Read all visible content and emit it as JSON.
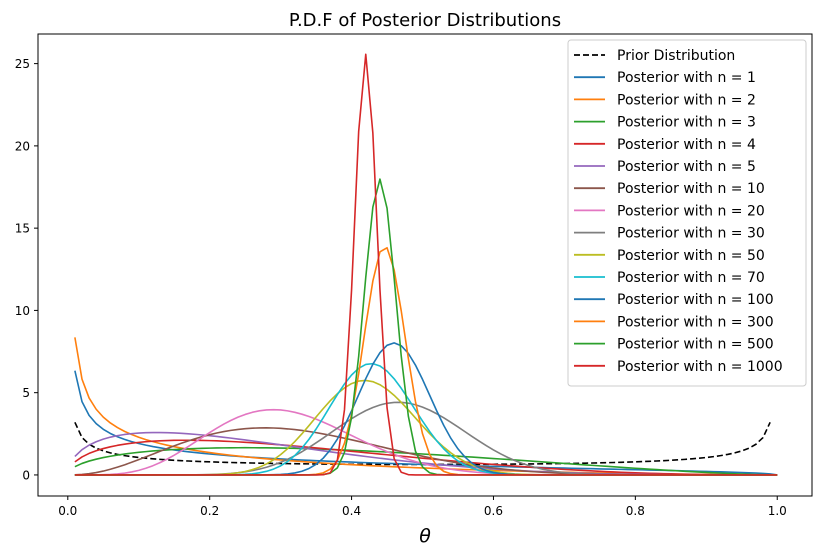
{
  "chart_data": {
    "type": "line",
    "title": "P.D.F of Posterior Distributions",
    "xlabel": "θ",
    "ylabel": "",
    "xlim": [
      -0.042,
      1.049
    ],
    "ylim": [
      -1.28,
      26.8
    ],
    "xticks": [
      0.0,
      0.2,
      0.4,
      0.6,
      0.8,
      1.0
    ],
    "xtick_labels": [
      "0.0",
      "0.2",
      "0.4",
      "0.6",
      "0.8",
      "1.0"
    ],
    "yticks": [
      0,
      5,
      10,
      15,
      20,
      25
    ],
    "ytick_labels": [
      "0",
      "5",
      "10",
      "15",
      "20",
      "25"
    ],
    "grid": false,
    "legend_position": "top-right",
    "series": [
      {
        "name": "Prior Distribution",
        "color": "#000000",
        "dash": true,
        "distribution": "Beta",
        "alpha": 0.5,
        "beta": 0.5,
        "x_range": [
          0.01,
          0.99
        ],
        "x_step": 0.01
      },
      {
        "name": "Posterior with n = 1",
        "color": "#1f77b4",
        "distribution": "Beta",
        "alpha": 0.5,
        "beta": 1.5,
        "x_range": [
          0.01,
          1.0
        ],
        "x_step": 0.01
      },
      {
        "name": "Posterior with n = 2",
        "color": "#ff7f0e",
        "distribution": "Beta",
        "alpha": 0.5,
        "beta": 2.5,
        "x_range": [
          0.01,
          1.0
        ],
        "x_step": 0.01
      },
      {
        "name": "Posterior with n = 3",
        "color": "#2ca02c",
        "distribution": "Beta",
        "alpha": 1.5,
        "beta": 2.5,
        "x_range": [
          0.01,
          1.0
        ],
        "x_step": 0.01
      },
      {
        "name": "Posterior with n = 4",
        "color": "#d62728",
        "distribution": "Beta",
        "alpha": 1.5,
        "beta": 3.5,
        "x_range": [
          0.01,
          1.0
        ],
        "x_step": 0.01
      },
      {
        "name": "Posterior with n = 5",
        "color": "#9467bd",
        "distribution": "Beta",
        "alpha": 1.5,
        "beta": 4.5,
        "x_range": [
          0.01,
          1.0
        ],
        "x_step": 0.01
      },
      {
        "name": "Posterior with n = 10",
        "color": "#8c564b",
        "distribution": "Beta",
        "alpha": 3.5,
        "beta": 7.5,
        "x_range": [
          0.01,
          1.0
        ],
        "x_step": 0.01
      },
      {
        "name": "Posterior with n = 20",
        "color": "#e377c2",
        "distribution": "Beta",
        "alpha": 6.5,
        "beta": 14.5,
        "x_range": [
          0.01,
          1.0
        ],
        "x_step": 0.01
      },
      {
        "name": "Posterior with n = 30",
        "color": "#7f7f7f",
        "distribution": "Beta",
        "alpha": 14.5,
        "beta": 16.5,
        "x_range": [
          0.01,
          1.0
        ],
        "x_step": 0.01
      },
      {
        "name": "Posterior with n = 50",
        "color": "#bcbd22",
        "distribution": "Beta",
        "alpha": 21.5,
        "beta": 29.5,
        "x_range": [
          0.01,
          1.0
        ],
        "x_step": 0.01
      },
      {
        "name": "Posterior with n = 70",
        "color": "#17becf",
        "distribution": "Beta",
        "alpha": 30.5,
        "beta": 40.5,
        "x_range": [
          0.01,
          1.0
        ],
        "x_step": 0.01
      },
      {
        "name": "Posterior with n = 100",
        "color": "#1f77b4",
        "distribution": "Beta",
        "alpha": 46.5,
        "beta": 54.5,
        "x_range": [
          0.01,
          1.0
        ],
        "x_step": 0.01
      },
      {
        "name": "Posterior with n = 300",
        "color": "#ff7f0e",
        "distribution": "Beta",
        "alpha": 134.5,
        "beta": 166.5,
        "x_range": [
          0.01,
          1.0
        ],
        "x_step": 0.01
      },
      {
        "name": "Posterior with n = 500",
        "color": "#2ca02c",
        "distribution": "Beta",
        "alpha": 220.5,
        "beta": 280.5,
        "x_range": [
          0.01,
          1.0
        ],
        "x_step": 0.01
      },
      {
        "name": "Posterior with n = 1000",
        "color": "#d62728",
        "distribution": "Beta",
        "alpha": 420.5,
        "beta": 580.5,
        "x_range": [
          0.01,
          1.0
        ],
        "x_step": 0.01
      }
    ]
  }
}
